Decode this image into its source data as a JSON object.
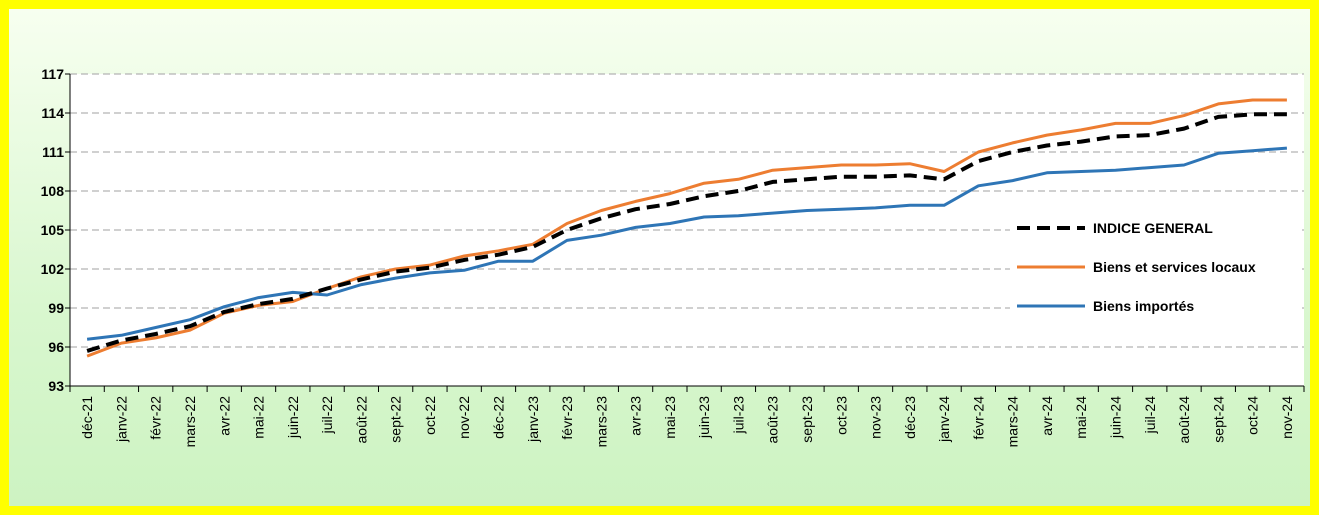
{
  "chart_data": {
    "type": "line",
    "title": "",
    "xlabel": "",
    "ylabel": "",
    "ylim": [
      93,
      117
    ],
    "yticks": [
      93,
      96,
      99,
      102,
      105,
      108,
      111,
      114,
      117
    ],
    "grid": "horizontal-dashed",
    "legend_position": "right",
    "categories": [
      "déc-21",
      "janv-22",
      "févr-22",
      "mars-22",
      "avr-22",
      "mai-22",
      "juin-22",
      "juil-22",
      "août-22",
      "sept-22",
      "oct-22",
      "nov-22",
      "déc-22",
      "janv-23",
      "févr-23",
      "mars-23",
      "avr-23",
      "mai-23",
      "juin-23",
      "juil-23",
      "août-23",
      "sept-23",
      "oct-23",
      "nov-23",
      "déc-23",
      "janv-24",
      "févr-24",
      "mars-24",
      "avr-24",
      "mai-24",
      "juin-24",
      "juil-24",
      "août-24",
      "sept-24",
      "oct-24",
      "nov-24"
    ],
    "series": [
      {
        "name": "INDICE GENERAL",
        "color": "#000000",
        "style": "dashed",
        "values": [
          95.7,
          96.5,
          97.0,
          97.6,
          98.7,
          99.3,
          99.7,
          100.5,
          101.2,
          101.8,
          102.1,
          102.7,
          103.1,
          103.7,
          105.0,
          105.9,
          106.6,
          107.0,
          107.6,
          108.0,
          108.7,
          108.9,
          109.1,
          109.1,
          109.2,
          108.9,
          110.3,
          111.0,
          111.5,
          111.8,
          112.2,
          112.3,
          112.8,
          113.7,
          113.9,
          113.9
        ]
      },
      {
        "name": "Biens et services locaux",
        "color": "#ed7d31",
        "style": "solid",
        "values": [
          95.3,
          96.3,
          96.7,
          97.3,
          98.6,
          99.2,
          99.5,
          100.5,
          101.4,
          102.0,
          102.3,
          103.0,
          103.4,
          103.9,
          105.5,
          106.5,
          107.2,
          107.8,
          108.6,
          108.9,
          109.6,
          109.8,
          110.0,
          110.0,
          110.1,
          109.5,
          111.0,
          111.7,
          112.3,
          112.7,
          113.2,
          113.2,
          113.8,
          114.7,
          115.0,
          115.0
        ]
      },
      {
        "name": "Biens importés",
        "color": "#2e75b6",
        "style": "solid",
        "values": [
          96.6,
          96.9,
          97.5,
          98.1,
          99.1,
          99.8,
          100.2,
          100.0,
          100.8,
          101.3,
          101.7,
          101.9,
          102.6,
          102.6,
          104.2,
          104.6,
          105.2,
          105.5,
          106.0,
          106.1,
          106.3,
          106.5,
          106.6,
          106.7,
          106.9,
          106.9,
          108.4,
          108.8,
          109.4,
          109.5,
          109.6,
          109.8,
          110.0,
          110.9,
          111.1,
          111.3
        ]
      }
    ]
  }
}
